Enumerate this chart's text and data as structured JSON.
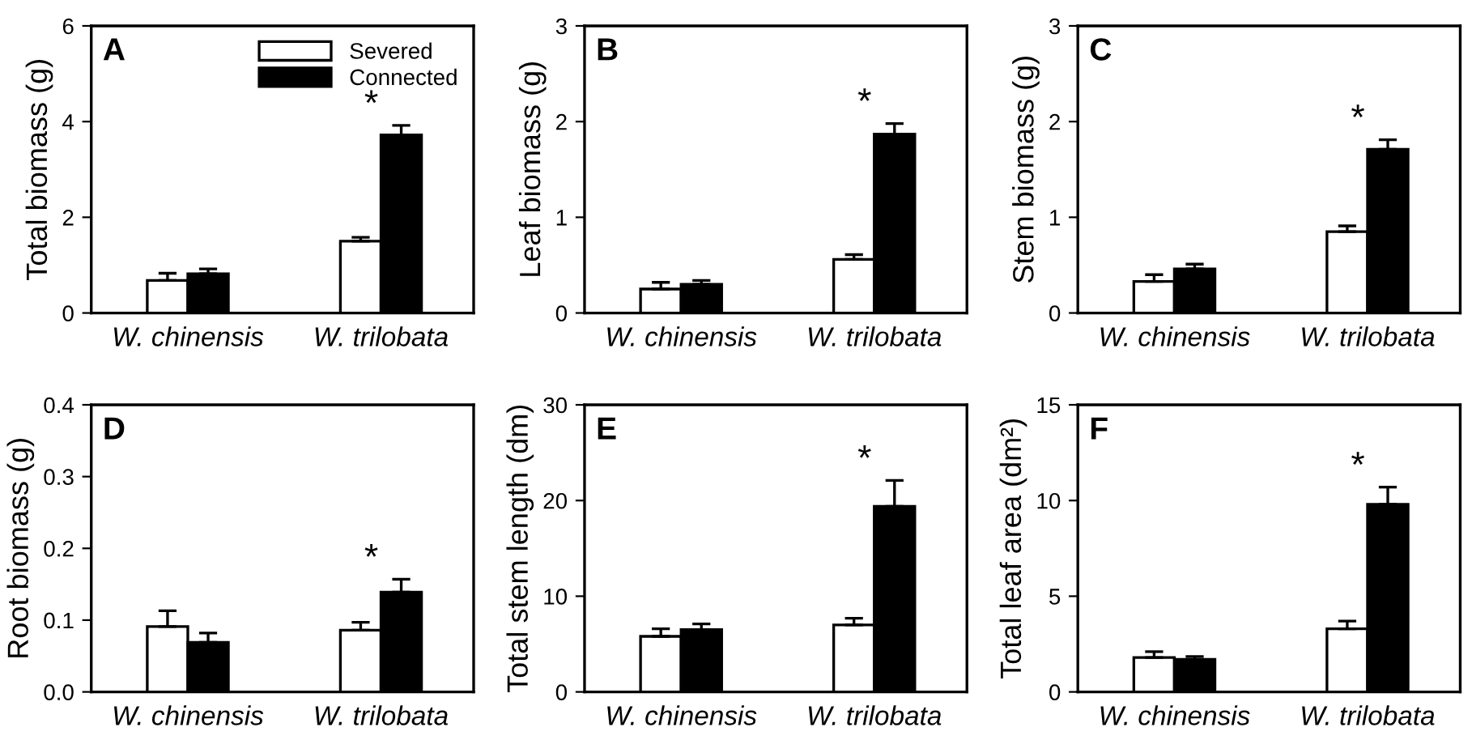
{
  "chart_data": [
    {
      "type": "bar",
      "ylabel": "Total biomass (g)",
      "categories": [
        "W. chinensis",
        "W. trilobata"
      ],
      "ylim": [
        0,
        6
      ],
      "yticks": [
        0,
        2,
        4,
        6
      ],
      "legend": "top right",
      "grid": false,
      "series": [
        {
          "name": "Severed",
          "color": "#ffffff",
          "values": [
            0.68,
            1.5
          ],
          "errors": [
            [
              0.68,
              0.83
            ],
            [
              1.5,
              1.58
            ]
          ]
        },
        {
          "name": "Connected",
          "color": "#000000",
          "values": [
            0.82,
            3.72
          ],
          "errors": [
            [
              0.82,
              0.92
            ],
            [
              3.72,
              3.92
            ]
          ]
        }
      ],
      "annotations": [
        "A",
        "*"
      ]
    },
    {
      "type": "bar",
      "ylabel": "Leaf biomass (g)",
      "categories": [
        "W. chinensis",
        "W. trilobata"
      ],
      "ylim": [
        0,
        3
      ],
      "yticks": [
        0,
        1,
        2,
        3
      ],
      "grid": false,
      "series": [
        {
          "color": "#ffffff",
          "values": [
            0.25,
            0.56
          ],
          "errors": [
            [
              0.25,
              0.32
            ],
            [
              0.56,
              0.61
            ]
          ]
        },
        {
          "color": "#000000",
          "values": [
            0.3,
            1.87
          ],
          "errors": [
            [
              0.3,
              0.34
            ],
            [
              1.87,
              1.98
            ]
          ]
        }
      ],
      "annotations": [
        "B",
        "*"
      ]
    },
    {
      "type": "bar",
      "ylabel": "Stem biomass (g)",
      "categories": [
        "W. chinensis",
        "W. trilobata"
      ],
      "ylim": [
        0,
        3
      ],
      "yticks": [
        0,
        1,
        2,
        3
      ],
      "grid": false,
      "series": [
        {
          "color": "#ffffff",
          "values": [
            0.33,
            0.85
          ],
          "errors": [
            [
              0.33,
              0.4
            ],
            [
              0.85,
              0.91
            ]
          ]
        },
        {
          "color": "#000000",
          "values": [
            0.46,
            1.71
          ],
          "errors": [
            [
              0.46,
              0.51
            ],
            [
              1.71,
              1.81
            ]
          ]
        }
      ],
      "annotations": [
        "C",
        "*"
      ]
    },
    {
      "type": "bar",
      "ylabel": "Root biomass (g)",
      "categories": [
        "W. chinensis",
        "W. trilobata"
      ],
      "ylim": [
        0,
        0.4
      ],
      "yticks": [
        {
          "value": 0,
          "label": "0.0"
        },
        0.1,
        0.2,
        0.3,
        0.4
      ],
      "grid": false,
      "series": [
        {
          "color": "#ffffff",
          "values": [
            0.091,
            0.086
          ],
          "errors": [
            [
              0.091,
              0.113
            ],
            [
              0.086,
              0.097
            ]
          ]
        },
        {
          "color": "#000000",
          "values": [
            0.069,
            0.139
          ],
          "errors": [
            [
              0.069,
              0.082
            ],
            [
              0.139,
              0.157
            ]
          ]
        }
      ],
      "annotations": [
        "D",
        "*"
      ]
    },
    {
      "type": "bar",
      "ylabel": "Total stem length (dm)",
      "categories": [
        "W. chinensis",
        "W. trilobata"
      ],
      "ylim": [
        0,
        30
      ],
      "yticks": [
        0,
        10,
        20,
        30
      ],
      "grid": false,
      "series": [
        {
          "color": "#ffffff",
          "values": [
            5.8,
            7.0
          ],
          "errors": [
            [
              5.8,
              6.6
            ],
            [
              7.0,
              7.7
            ]
          ]
        },
        {
          "color": "#000000",
          "values": [
            6.5,
            19.4
          ],
          "errors": [
            [
              6.5,
              7.1
            ],
            [
              19.4,
              22.1
            ]
          ]
        }
      ],
      "annotations": [
        "E",
        "*"
      ]
    },
    {
      "type": "bar",
      "ylabel": "Total leaf area (dm²)",
      "categories": [
        "W. chinensis",
        "W. trilobata"
      ],
      "ylim": [
        0,
        15
      ],
      "yticks": [
        0,
        5,
        10,
        15
      ],
      "grid": false,
      "series": [
        {
          "color": "#ffffff",
          "values": [
            1.8,
            3.3
          ],
          "errors": [
            [
              1.8,
              2.1
            ],
            [
              3.3,
              3.7
            ]
          ]
        },
        {
          "color": "#000000",
          "values": [
            1.7,
            9.8
          ],
          "errors": [
            [
              1.7,
              1.85
            ],
            [
              9.8,
              10.7
            ]
          ]
        }
      ],
      "annotations": [
        "F",
        "*"
      ]
    }
  ]
}
